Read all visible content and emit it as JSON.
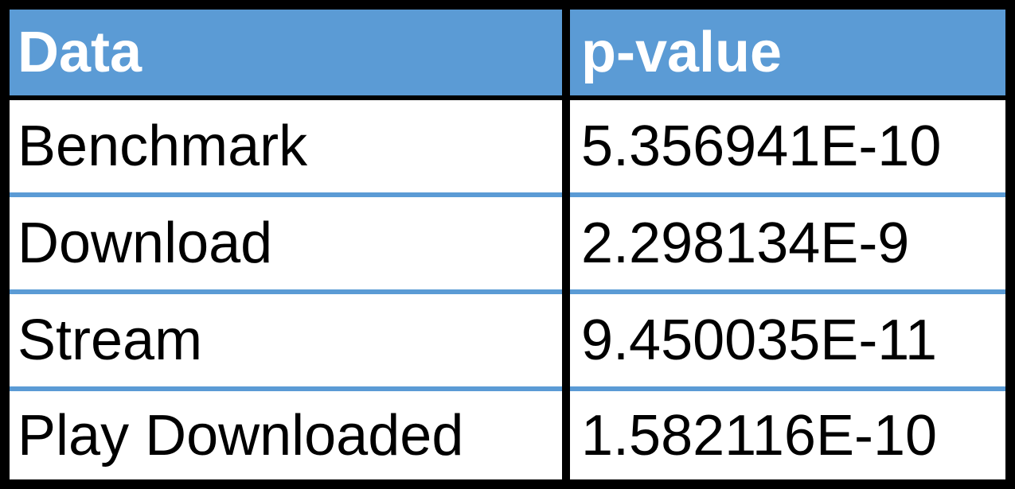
{
  "table": {
    "headers": [
      "Data",
      "p-value"
    ],
    "rows": [
      [
        "Benchmark",
        "5.356941E-10"
      ],
      [
        "Download",
        "2.298134E-9"
      ],
      [
        "Stream",
        "9.450035E-11"
      ],
      [
        "Play Downloaded",
        "1.582116E-10"
      ]
    ]
  },
  "colors": {
    "header_bg": "#5b9bd5",
    "header_text": "#ffffff",
    "body_bg": "#ffffff",
    "border": "#000000",
    "row_separator": "#5b9bd5"
  }
}
